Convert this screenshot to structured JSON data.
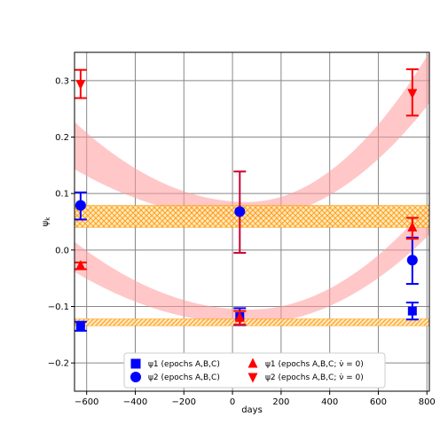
{
  "chart_data": {
    "type": "scatter",
    "xlabel": "days",
    "ylabel": "ψ_k",
    "xlim": [
      -650,
      810
    ],
    "ylim": [
      -0.25,
      0.35
    ],
    "grid": true,
    "legend_placement": "lower-center",
    "x_ticks": [
      -600,
      -400,
      -200,
      0,
      200,
      400,
      600,
      800
    ],
    "x_tick_labels": [
      "−600",
      "−400",
      "−200",
      "0",
      "200",
      "400",
      "600",
      "800"
    ],
    "y_ticks": [
      -0.2,
      -0.1,
      0.0,
      0.1,
      0.2,
      0.3
    ],
    "y_tick_labels": [
      "−0.2",
      "−0.1",
      "0.0",
      "0.1",
      "0.2",
      "0.3"
    ],
    "colors": {
      "blue": "#0000ff",
      "red": "#ff0000",
      "crimson": "#cc0033",
      "orange": "#ff9900",
      "band_red": "#ff9999"
    },
    "series": [
      {
        "name": "ψ1 (epochs A,B,C)",
        "marker": "square",
        "color": "#0000ff",
        "points": [
          {
            "x": -625,
            "y": -0.135,
            "yerr_low": 0.008,
            "yerr_high": 0.008
          },
          {
            "x": 30,
            "y": -0.118,
            "yerr_low": 0.015,
            "yerr_high": 0.015
          },
          {
            "x": 740,
            "y": -0.108,
            "yerr_low": 0.015,
            "yerr_high": 0.015
          }
        ]
      },
      {
        "name": "ψ2 (epochs A,B,C)",
        "marker": "circle",
        "color": "#0000ff",
        "points": [
          {
            "x": -625,
            "y": 0.079,
            "yerr_low": 0.025,
            "yerr_high": 0.023
          },
          {
            "x": 30,
            "y": 0.068,
            "yerr_low": 0.073,
            "yerr_high": 0.071
          },
          {
            "x": 740,
            "y": -0.018,
            "yerr_low": 0.042,
            "yerr_high": 0.04
          }
        ]
      },
      {
        "name": "ψ1 (epochs A,B,C; ν̇ = 0)",
        "marker": "triangle-up",
        "color": "#ff0000",
        "points": [
          {
            "x": -625,
            "y": -0.028,
            "yerr_low": 0.006,
            "yerr_high": 0.006
          },
          {
            "x": 30,
            "y": -0.12,
            "yerr_low": 0.012,
            "yerr_high": 0.012
          },
          {
            "x": 740,
            "y": 0.04,
            "yerr_low": 0.02,
            "yerr_high": 0.017
          }
        ]
      },
      {
        "name": "ψ2 (epochs A,B,C; ν̇ = 0)",
        "marker": "triangle-down",
        "color": "#ff0000",
        "points": [
          {
            "x": -625,
            "y": 0.294,
            "yerr_low": 0.025,
            "yerr_high": 0.025
          },
          {
            "x": 740,
            "y": 0.278,
            "yerr_low": 0.04,
            "yerr_high": 0.042
          }
        ]
      }
    ],
    "hatched_bands": [
      {
        "y_low": 0.04,
        "y_high": 0.079,
        "color": "#ff9900"
      },
      {
        "y_low": -0.134,
        "y_high": -0.122,
        "color": "#ff9900"
      }
    ],
    "parabola_bands": [
      {
        "vertex_x": 60,
        "vertex_y": 0.07,
        "width_at_vertex": 0.03,
        "width_at_edges": 0.09,
        "y_at_left": 0.185,
        "y_at_right": 0.305
      },
      {
        "vertex_x": 70,
        "vertex_y": -0.118,
        "width_at_vertex": 0.025,
        "width_at_edges": 0.055,
        "y_at_left": -0.012,
        "y_at_right": 0.055
      }
    ]
  }
}
